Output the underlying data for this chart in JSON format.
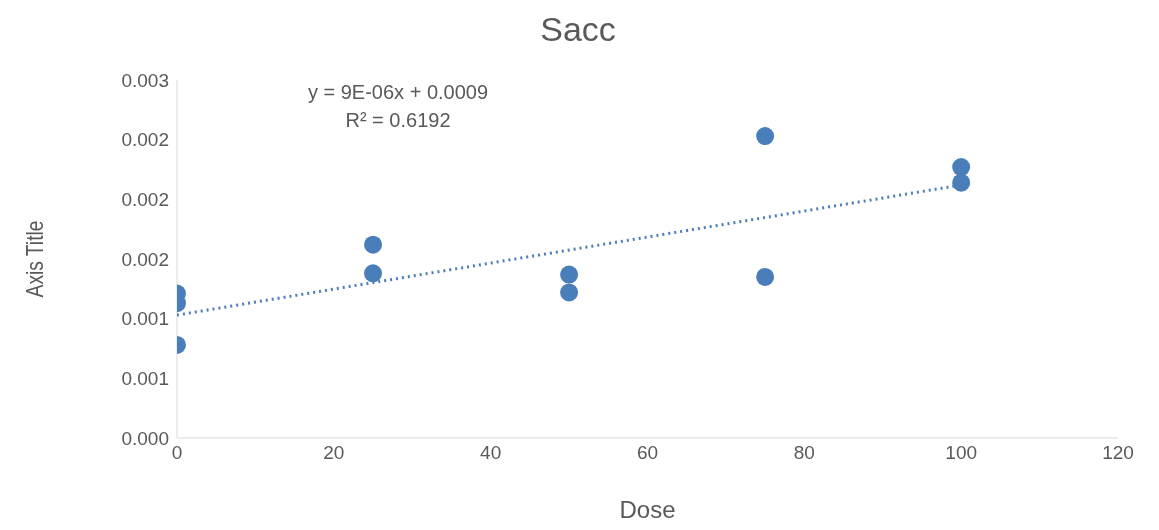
{
  "chart_data": {
    "type": "scatter",
    "title": "Sacc",
    "xlabel": "Dose",
    "ylabel": "Axis Title",
    "annotations": [
      "y = 9E-06x + 0.0009",
      "R² = 0.6192"
    ],
    "xlim": [
      0,
      120
    ],
    "xticks": [
      0,
      20,
      40,
      60,
      80,
      100,
      120
    ],
    "ylim": [
      0,
      0.003
    ],
    "yticks": [
      {
        "value": 0,
        "label": "0.000"
      },
      {
        "value": 0.0005,
        "label": "0.001"
      },
      {
        "value": 0.001,
        "label": "0.001"
      },
      {
        "value": 0.0015,
        "label": "0.002"
      },
      {
        "value": 0.002,
        "label": "0.002"
      },
      {
        "value": 0.0025,
        "label": "0.002"
      },
      {
        "value": 0.003,
        "label": "0.003"
      }
    ],
    "grid": false,
    "legend": false,
    "marker": "circle",
    "series": [
      {
        "type": "scatter",
        "color": "#4a7ebb",
        "x": [
          0,
          0,
          0,
          25,
          25,
          50,
          50,
          75,
          75,
          100,
          100
        ],
        "values": [
          0.00121,
          0.00113,
          0.00078,
          0.00162,
          0.00138,
          0.00137,
          0.00122,
          0.00253,
          0.00135,
          0.00227,
          0.00214
        ]
      },
      {
        "type": "line",
        "color": "#4a7ebb",
        "line_style": "dotted",
        "marker": "none",
        "x": [
          0,
          100
        ],
        "values": [
          0.00103,
          0.00212
        ]
      }
    ]
  }
}
